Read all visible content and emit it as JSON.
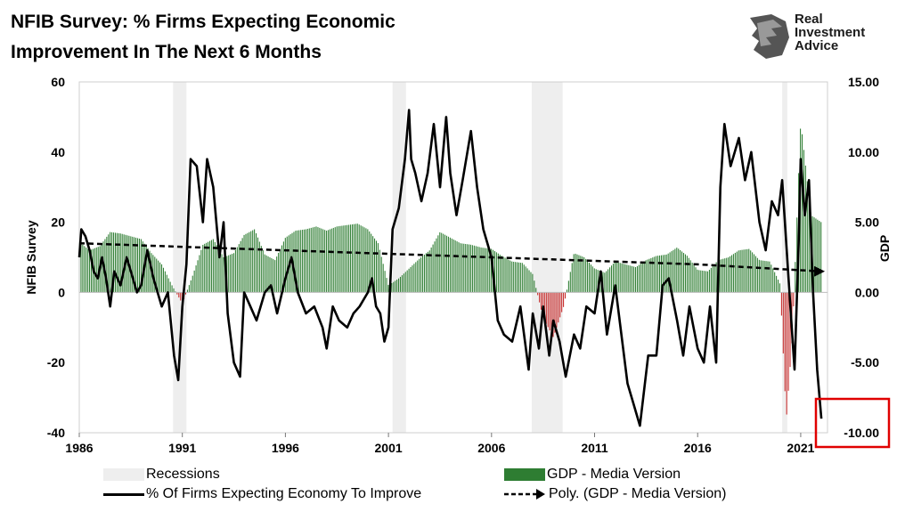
{
  "title_line1": "NFIB Survey:  % Firms Expecting Economic",
  "title_line2": "Improvement In The  Next 6 Months",
  "logo": {
    "icon": "lion-head-icon",
    "line1": "Real",
    "line2": "Investment",
    "line3": "Advice"
  },
  "colors": {
    "survey": "#000000",
    "gdp_pos": "#2e7d32",
    "gdp_neg": "#c62828",
    "recession": "#eeeeee",
    "highlight_box": "#e00000"
  },
  "legend": [
    {
      "label": "Recessions",
      "kind": "recession"
    },
    {
      "label": "GDP - Media Version",
      "kind": "gdp"
    },
    {
      "label": "% Of Firms Expecting Economy To Improve",
      "kind": "line"
    },
    {
      "label": "Poly. (GDP - Media Version)",
      "kind": "trend"
    }
  ],
  "chart_data": {
    "type": "line",
    "ylabel": "NFIB Survey",
    "y2label": "GDP",
    "xlim": [
      1986,
      2022.3
    ],
    "ylim": [
      -40,
      60
    ],
    "y2lim": [
      -10,
      15
    ],
    "x_ticks": [
      "1986",
      "1991",
      "1996",
      "2001",
      "2006",
      "2011",
      "2016",
      "2021"
    ],
    "y_ticks": [
      "-40",
      "-20",
      "0",
      "20",
      "40",
      "60"
    ],
    "y2_ticks": [
      "-10.00",
      "-5.00",
      "0.00",
      "5.00",
      "10.00",
      "15.00"
    ],
    "recessions": [
      [
        1990.55,
        1991.2
      ],
      [
        2001.2,
        2001.85
      ],
      [
        2007.95,
        2009.45
      ],
      [
        2020.1,
        2020.35
      ]
    ],
    "series": [
      {
        "name": "% Of Firms Expecting Economy To Improve",
        "x": [
          1986.0,
          1986.1,
          1986.3,
          1986.5,
          1986.7,
          1986.9,
          1987.1,
          1987.3,
          1987.5,
          1987.7,
          1988.0,
          1988.3,
          1988.5,
          1988.8,
          1989.0,
          1989.3,
          1989.6,
          1990.0,
          1990.3,
          1990.6,
          1990.8,
          1991.0,
          1991.2,
          1991.4,
          1991.7,
          1992.0,
          1992.2,
          1992.5,
          1992.8,
          1993.0,
          1993.2,
          1993.5,
          1993.8,
          1994.0,
          1994.3,
          1994.6,
          1995.0,
          1995.3,
          1995.6,
          1996.0,
          1996.3,
          1996.6,
          1997.0,
          1997.4,
          1997.8,
          1998.0,
          1998.3,
          1998.6,
          1999.0,
          1999.3,
          1999.6,
          2000.0,
          2000.2,
          2000.4,
          2000.6,
          2000.8,
          2001.0,
          2001.2,
          2001.5,
          2001.8,
          2002.0,
          2002.1,
          2002.3,
          2002.6,
          2002.9,
          2003.2,
          2003.5,
          2003.8,
          2004.0,
          2004.3,
          2004.6,
          2005.0,
          2005.3,
          2005.6,
          2006.0,
          2006.3,
          2006.6,
          2007.0,
          2007.4,
          2007.8,
          2008.0,
          2008.3,
          2008.5,
          2008.8,
          2009.0,
          2009.3,
          2009.6,
          2010.0,
          2010.3,
          2010.6,
          2011.0,
          2011.3,
          2011.6,
          2012.0,
          2012.3,
          2012.6,
          2012.9,
          2013.2,
          2013.6,
          2014.0,
          2014.3,
          2014.6,
          2015.0,
          2015.3,
          2015.6,
          2016.0,
          2016.3,
          2016.6,
          2016.9,
          2017.1,
          2017.3,
          2017.6,
          2018.0,
          2018.3,
          2018.6,
          2019.0,
          2019.3,
          2019.6,
          2019.9,
          2020.1,
          2020.3,
          2020.5,
          2020.7,
          2020.9,
          2021.0,
          2021.2,
          2021.4,
          2021.6,
          2021.8,
          2022.0
        ],
        "values": [
          10,
          18,
          16,
          12,
          6,
          4,
          10,
          4,
          -4,
          6,
          2,
          10,
          6,
          0,
          2,
          12,
          4,
          -4,
          0,
          -18,
          -25,
          -4,
          8,
          38,
          36,
          20,
          38,
          30,
          10,
          20,
          -6,
          -20,
          -24,
          0,
          -4,
          -8,
          0,
          2,
          -6,
          4,
          10,
          0,
          -6,
          -4,
          -10,
          -16,
          -4,
          -8,
          -10,
          -6,
          -4,
          0,
          4,
          -4,
          -6,
          -14,
          -10,
          18,
          24,
          38,
          52,
          38,
          34,
          26,
          34,
          48,
          30,
          50,
          34,
          22,
          32,
          46,
          30,
          18,
          10,
          -8,
          -12,
          -14,
          -4,
          -22,
          -6,
          -16,
          -4,
          -18,
          -8,
          -14,
          -24,
          -12,
          -16,
          -4,
          -6,
          6,
          -12,
          2,
          -12,
          -26,
          -32,
          -38,
          -18,
          -18,
          2,
          4,
          -8,
          -18,
          -4,
          -16,
          -20,
          -4,
          -20,
          30,
          48,
          36,
          44,
          32,
          40,
          20,
          12,
          26,
          22,
          32,
          14,
          -4,
          -22,
          14,
          38,
          22,
          32,
          0,
          -22,
          -36
        ]
      },
      {
        "name": "GDP - Media Version",
        "x": [
          1986.0,
          1986.5,
          1987.0,
          1987.5,
          1988.0,
          1988.5,
          1989.0,
          1989.5,
          1990.0,
          1990.5,
          1991.0,
          1991.5,
          1992.0,
          1992.5,
          1993.0,
          1993.5,
          1994.0,
          1994.5,
          1995.0,
          1995.5,
          1996.0,
          1996.5,
          1997.0,
          1997.5,
          1998.0,
          1998.5,
          1999.0,
          1999.5,
          2000.0,
          2000.5,
          2001.0,
          2001.5,
          2002.0,
          2002.5,
          2003.0,
          2003.5,
          2004.0,
          2004.5,
          2005.0,
          2005.5,
          2006.0,
          2006.5,
          2007.0,
          2007.5,
          2008.0,
          2008.5,
          2009.0,
          2009.5,
          2010.0,
          2010.5,
          2011.0,
          2011.5,
          2012.0,
          2012.5,
          2013.0,
          2013.5,
          2014.0,
          2014.5,
          2015.0,
          2015.5,
          2016.0,
          2016.5,
          2017.0,
          2017.5,
          2018.0,
          2018.5,
          2019.0,
          2019.5,
          2020.0,
          2020.3,
          2020.6,
          2021.0,
          2021.5,
          2022.0
        ],
        "values": [
          3.6,
          3.0,
          3.3,
          4.3,
          4.2,
          4.0,
          3.8,
          2.8,
          2.0,
          0.5,
          -0.8,
          1.2,
          3.4,
          3.8,
          2.5,
          2.8,
          4.1,
          4.5,
          2.7,
          2.3,
          3.9,
          4.4,
          4.5,
          4.7,
          4.4,
          4.7,
          4.8,
          4.9,
          4.5,
          3.5,
          0.5,
          1.0,
          1.7,
          2.4,
          3.0,
          4.3,
          3.9,
          3.5,
          3.4,
          3.2,
          3.1,
          2.6,
          2.2,
          2.1,
          1.3,
          -1.8,
          -3.2,
          -1.0,
          2.8,
          2.5,
          1.7,
          1.4,
          2.2,
          2.0,
          1.8,
          2.3,
          2.6,
          2.7,
          3.2,
          2.6,
          1.6,
          1.5,
          2.3,
          2.5,
          3.0,
          3.1,
          2.3,
          2.2,
          0.6,
          -9.1,
          -3.0,
          12.2,
          5.5,
          5.0
        ]
      },
      {
        "name": "Poly. (GDP - Media Version)",
        "x": [
          1986.0,
          1992.0,
          1998.0,
          2004.0,
          2010.0,
          2016.0,
          2022.0
        ],
        "values": [
          3.5,
          3.2,
          2.9,
          2.6,
          2.3,
          2.0,
          1.5
        ]
      }
    ]
  }
}
